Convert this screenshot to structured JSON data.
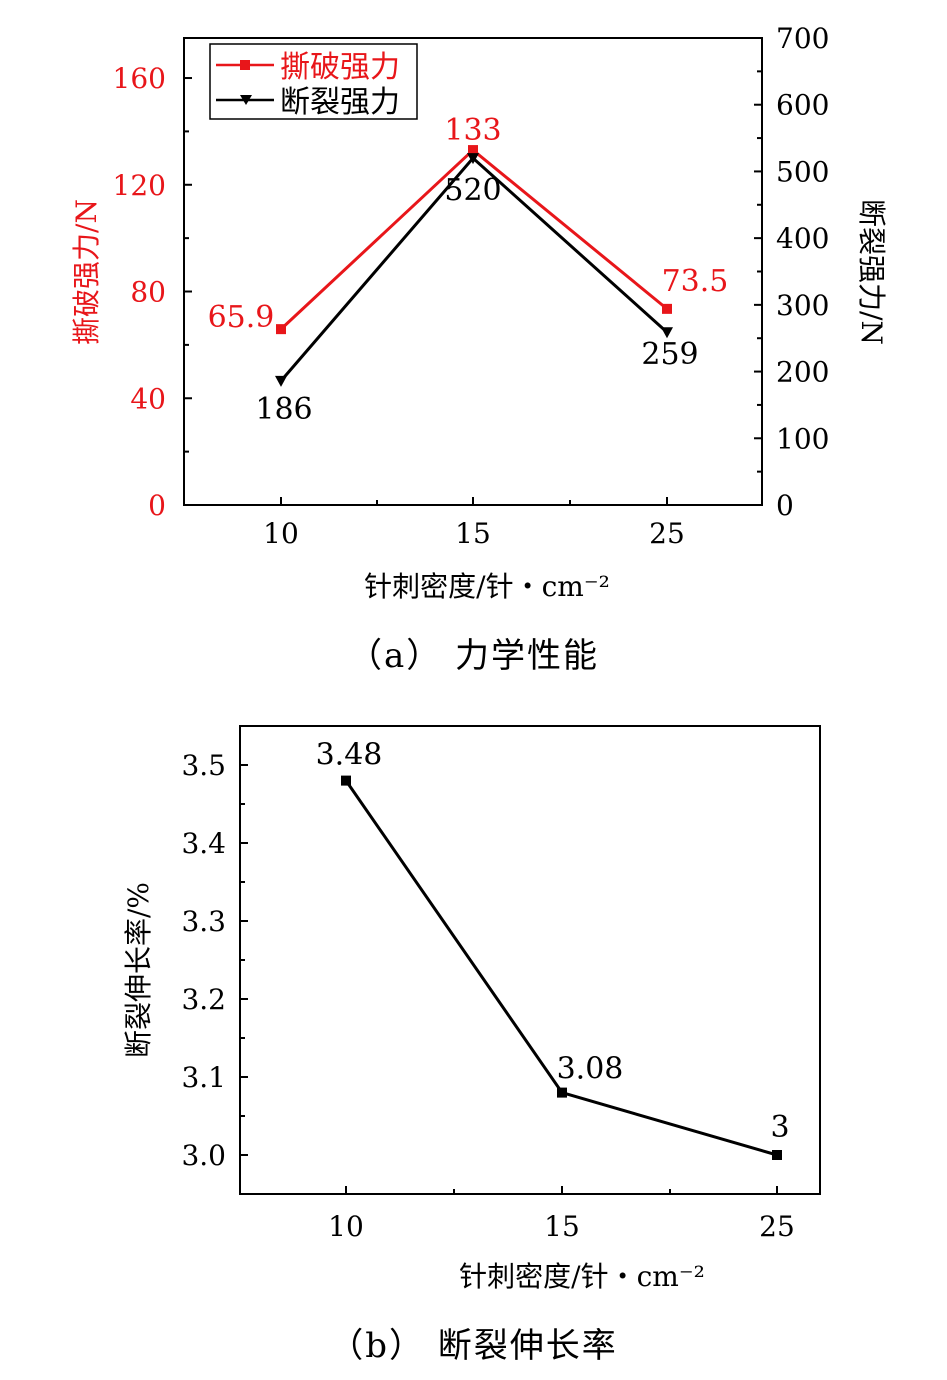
{
  "chart_data": [
    {
      "type": "line",
      "caption": "（a） 力学性能",
      "xlabel": "针刺密度/针・cm⁻²",
      "categories": [
        "10",
        "15",
        "25"
      ],
      "ylabel_left": "撕破强力/N",
      "ylabel_right": "断裂强力/N",
      "ylim_left": [
        0,
        175
      ],
      "yticks_left": [
        "0",
        "40",
        "80",
        "120",
        "160"
      ],
      "ylim_right": [
        0,
        700
      ],
      "yticks_right": [
        "0",
        "100",
        "200",
        "300",
        "400",
        "500",
        "600",
        "700"
      ],
      "legend_position": "top-left",
      "series": [
        {
          "name": "撕破强力",
          "axis": "left",
          "color": "#e8161a",
          "marker": "square",
          "values": [
            65.9,
            133,
            73.5
          ],
          "labels": [
            "65.9",
            "133",
            "73.5"
          ]
        },
        {
          "name": "断裂强力",
          "axis": "right",
          "color": "#000000",
          "marker": "triangle-down",
          "values": [
            186,
            520,
            259
          ],
          "labels": [
            "186",
            "520",
            "259"
          ]
        }
      ]
    },
    {
      "type": "line",
      "caption": "（b） 断裂伸长率",
      "xlabel": "针刺密度/针・cm⁻²",
      "categories": [
        "10",
        "15",
        "25"
      ],
      "ylabel": "断裂伸长率/%",
      "ylim": [
        2.95,
        3.55
      ],
      "yticks": [
        "3.0",
        "3.1",
        "3.2",
        "3.3",
        "3.4",
        "3.5"
      ],
      "series": [
        {
          "color": "#000000",
          "marker": "square",
          "values": [
            3.48,
            3.08,
            3.0
          ],
          "labels": [
            "3.48",
            "3.08",
            "3"
          ]
        }
      ]
    }
  ]
}
